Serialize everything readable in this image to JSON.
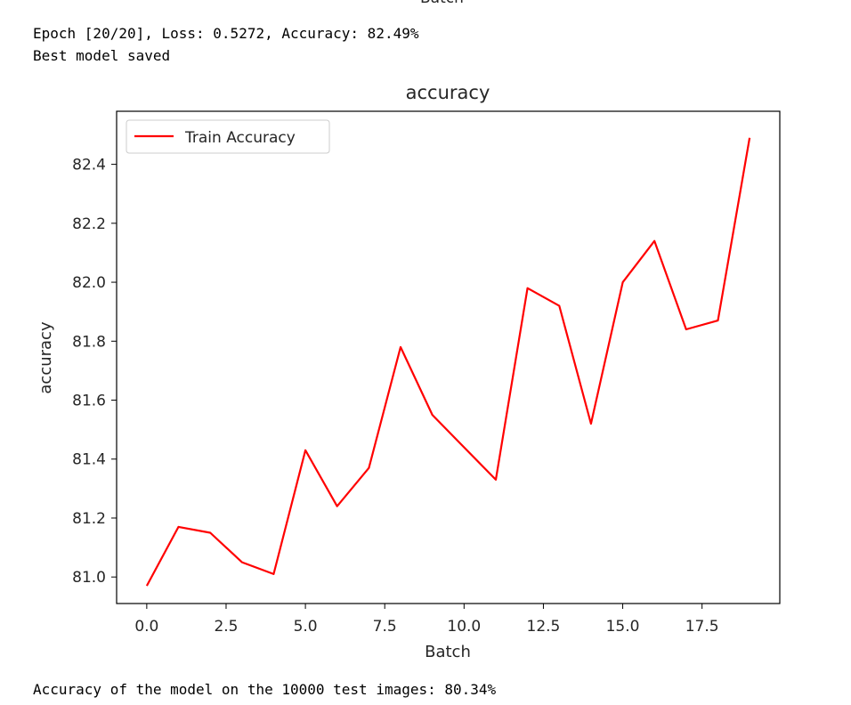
{
  "console": {
    "clipped_label": "Batch",
    "epoch_line": "Epoch [20/20], Loss: 0.5272, Accuracy: 82.49%",
    "saved_line": "Best model saved",
    "test_line": "Accuracy of the model on the 10000 test images: 80.34%"
  },
  "chart_data": {
    "type": "line",
    "title": "accuracy",
    "xlabel": "Batch",
    "ylabel": "accuracy",
    "xlim": [
      -0.95,
      19.95
    ],
    "ylim": [
      80.91,
      82.58
    ],
    "xticks": [
      0.0,
      2.5,
      5.0,
      7.5,
      10.0,
      12.5,
      15.0,
      17.5
    ],
    "xtick_labels": [
      "0.0",
      "2.5",
      "5.0",
      "7.5",
      "10.0",
      "12.5",
      "15.0",
      "17.5"
    ],
    "yticks": [
      81.0,
      81.2,
      81.4,
      81.6,
      81.8,
      82.0,
      82.2,
      82.4
    ],
    "ytick_labels": [
      "81.0",
      "81.2",
      "81.4",
      "81.6",
      "81.8",
      "82.0",
      "82.2",
      "82.4"
    ],
    "grid": false,
    "legend_position": "upper-left",
    "series": [
      {
        "name": "Train Accuracy",
        "color": "#ff0000",
        "x": [
          0,
          1,
          2,
          3,
          4,
          5,
          6,
          7,
          8,
          9,
          10,
          11,
          12,
          13,
          14,
          15,
          16,
          17,
          18,
          19
        ],
        "values": [
          80.97,
          81.17,
          81.15,
          81.05,
          81.01,
          81.43,
          81.24,
          81.37,
          81.78,
          81.55,
          81.44,
          81.33,
          81.98,
          81.92,
          81.52,
          82.0,
          82.14,
          81.84,
          81.87,
          82.49
        ]
      }
    ]
  }
}
